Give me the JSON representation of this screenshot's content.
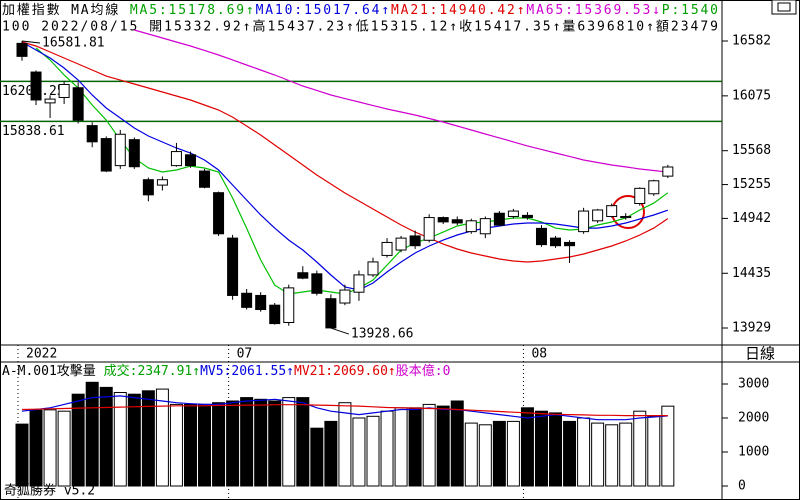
{
  "chart_data": [
    {
      "type": "candlestick",
      "header": [
        {
          "text": "加權指數 MA均線 ",
          "color": "#000000"
        },
        {
          "text": "MA5:15178.69↑",
          "color": "#00a000"
        },
        {
          "text": "MA10:15017.64↑",
          "color": "#0000e0"
        },
        {
          "text": "MA21:14940.42↑",
          "color": "#e00000"
        },
        {
          "text": "MA65:15369.53↓",
          "color": "#d000d0"
        },
        {
          "text": "P:1540",
          "color": "#00a000"
        }
      ],
      "subheader": "100 2022/08/15 開15332.92↑高15437.23↑低15315.12↑收15417.35↑量6396810↑額23479",
      "period": "日線",
      "categories": [
        "2022",
        null,
        null,
        null,
        null,
        null,
        null,
        null,
        null,
        null,
        null,
        null,
        null,
        null,
        null,
        "07",
        null,
        null,
        null,
        null,
        null,
        null,
        null,
        null,
        null,
        null,
        null,
        null,
        null,
        null,
        null,
        null,
        null,
        null,
        null,
        null,
        "08",
        null,
        null,
        null,
        null,
        null,
        null,
        null,
        null,
        null,
        null
      ],
      "open": [
        16560,
        16295,
        16010,
        16060,
        16150,
        15800,
        15680,
        15430,
        15670,
        15300,
        15250,
        15430,
        15530,
        15380,
        15180,
        14760,
        14250,
        14230,
        14140,
        13980,
        14440,
        14430,
        14200,
        14160,
        14260,
        14420,
        14600,
        14650,
        14780,
        14740,
        14950,
        14930,
        14820,
        14800,
        14990,
        14960,
        14970,
        14850,
        14760,
        14720,
        14820,
        14920,
        14960,
        14950,
        15080,
        15170,
        15332.92
      ],
      "high": [
        16581.81,
        16310,
        16080,
        16210,
        16200,
        15830,
        15700,
        15760,
        15690,
        15320,
        15330,
        15640,
        15560,
        15400,
        15190,
        14790,
        14290,
        14260,
        14160,
        14330,
        14500,
        14460,
        14240,
        14330,
        14460,
        14580,
        14760,
        14780,
        14830,
        14980,
        14960,
        14960,
        14940,
        14960,
        15010,
        15030,
        15000,
        14880,
        14780,
        14740,
        15040,
        15030,
        15080,
        14990,
        15230,
        15300,
        15437.23
      ],
      "low": [
        16400,
        15990,
        15870,
        16000,
        15820,
        15600,
        15370,
        15400,
        15400,
        15100,
        15200,
        15420,
        15410,
        15220,
        14780,
        14190,
        14100,
        14080,
        13960,
        13950,
        14380,
        14230,
        13928.66,
        14140,
        14180,
        14400,
        14580,
        14630,
        14660,
        14720,
        14890,
        14880,
        14800,
        14760,
        14870,
        14940,
        14930,
        14680,
        14670,
        14530,
        14800,
        14900,
        14950,
        14930,
        15060,
        15150,
        15315.12
      ],
      "close": [
        16440,
        16037,
        16045,
        16180,
        15850,
        15650,
        15380,
        15720,
        15420,
        15160,
        15300,
        15560,
        15430,
        15230,
        14800,
        14230,
        14120,
        14100,
        13970,
        14300,
        14390,
        14250,
        13930,
        14280,
        14420,
        14540,
        14720,
        14760,
        14690,
        14950,
        14910,
        14900,
        14920,
        14940,
        14880,
        15010,
        14950,
        14700,
        14690,
        14690,
        15010,
        15020,
        15060,
        14960,
        15220,
        15290,
        15417.35
      ],
      "lines": [
        {
          "color": "#00c000",
          "values": [
            null,
            16517,
            16406,
            16268,
            16148,
            15990,
            15852,
            15667,
            15500,
            15408,
            15371,
            15390,
            15426,
            15408,
            15371,
            15131,
            14853,
            14558,
            14326,
            14243,
            14262,
            14280,
            14262,
            14243,
            14299,
            14373,
            14511,
            14650,
            14715,
            14761,
            14816,
            14872,
            14900,
            14909,
            14927,
            14946,
            14946,
            14909,
            14853,
            14835,
            14844,
            14881,
            14909,
            14946,
            15020,
            15084,
            15178.69
          ]
        },
        {
          "color": "#0000e0",
          "values": [
            16573,
            16499,
            16425,
            16332,
            16221,
            16083,
            15963,
            15870,
            15778,
            15704,
            15648,
            15593,
            15547,
            15482,
            15390,
            15251,
            15112,
            14974,
            14853,
            14742,
            14650,
            14539,
            14419,
            14308,
            14280,
            14345,
            14447,
            14539,
            14622,
            14687,
            14742,
            14789,
            14826,
            14853,
            14872,
            14890,
            14900,
            14900,
            14890,
            14872,
            14853,
            14853,
            14872,
            14900,
            14937,
            14974,
            15017.64
          ]
        },
        {
          "color": "#e00000",
          "values": [
            16573,
            16536,
            16480,
            16425,
            16369,
            16314,
            16258,
            16221,
            16185,
            16148,
            16111,
            16074,
            16037,
            15990,
            15944,
            15879,
            15796,
            15713,
            15621,
            15528,
            15436,
            15343,
            15260,
            15177,
            15103,
            15029,
            14955,
            14881,
            14816,
            14761,
            14705,
            14659,
            14622,
            14595,
            14567,
            14548,
            14539,
            14548,
            14567,
            14585,
            14613,
            14650,
            14687,
            14733,
            14789,
            14853,
            14940.42
          ]
        },
        {
          "color": "#d000d0",
          "values": [
            null,
            null,
            null,
            null,
            null,
            null,
            null,
            null,
            16684,
            16647,
            16610,
            16573,
            16536,
            16495,
            16453,
            16407,
            16360,
            16314,
            16268,
            16217,
            16166,
            16125,
            16083,
            16050,
            16018,
            15985,
            15953,
            15926,
            15898,
            15866,
            15833,
            15796,
            15759,
            15722,
            15686,
            15649,
            15612,
            15580,
            15547,
            15515,
            15482,
            15459,
            15436,
            15418,
            15399,
            15385,
            15369.53
          ]
        }
      ],
      "hlines": [
        16209.25,
        15838.61
      ],
      "hline_color": "#006400",
      "annotations": [
        16581.81,
        13928.66
      ],
      "ylim": [
        13772,
        16961
      ],
      "yticks": [
        16582,
        16075,
        15568,
        15255,
        14942,
        14435,
        13929
      ]
    },
    {
      "type": "volume",
      "header": [
        {
          "text": "A-M.001攻擊量 ",
          "color": "#000000"
        },
        {
          "text": "成交:2347.91↑",
          "color": "#00a000"
        },
        {
          "text": "MV5:2061.55↑",
          "color": "#0000e0"
        },
        {
          "text": "MV21:2069.60↑",
          "color": "#e00000"
        },
        {
          "text": "股本億:0",
          "color": "#d000d0"
        }
      ],
      "footer": "奇狐勝券 v5.2",
      "values": [
        1820,
        2230,
        2240,
        2200,
        2700,
        3050,
        2900,
        2750,
        2700,
        2800,
        2850,
        2400,
        2400,
        2400,
        2450,
        2500,
        2600,
        2550,
        2500,
        2600,
        2600,
        1700,
        1900,
        2450,
        2000,
        2050,
        2200,
        2300,
        2300,
        2400,
        2350,
        2500,
        1850,
        1800,
        1900,
        1900,
        2300,
        2200,
        2150,
        1900,
        2000,
        1850,
        1800,
        1850,
        2200,
        2050,
        2347.91
      ],
      "lines": [
        {
          "color": "#0000e0",
          "values": [
            2200,
            2250,
            2300,
            2400,
            2500,
            2600,
            2620,
            2650,
            2600,
            2550,
            2500,
            2450,
            2420,
            2400,
            2400,
            2450,
            2500,
            2520,
            2550,
            2500,
            2450,
            2300,
            2200,
            2150,
            2100,
            2150,
            2200,
            2250,
            2250,
            2300,
            2250,
            2250,
            2200,
            2150,
            2100,
            2050,
            2000,
            2050,
            2100,
            2050,
            2000,
            1950,
            1950,
            1950,
            2000,
            2030,
            2061.55
          ]
        },
        {
          "color": "#e00000",
          "values": [
            2250,
            2260,
            2270,
            2280,
            2290,
            2300,
            2310,
            2320,
            2330,
            2340,
            2350,
            2360,
            2360,
            2360,
            2370,
            2370,
            2380,
            2380,
            2390,
            2390,
            2390,
            2380,
            2370,
            2360,
            2350,
            2330,
            2310,
            2300,
            2290,
            2280,
            2270,
            2250,
            2230,
            2210,
            2190,
            2170,
            2150,
            2130,
            2110,
            2100,
            2090,
            2080,
            2080,
            2070,
            2070,
            2070,
            2069.6
          ]
        }
      ],
      "ylim": [
        0,
        3647
      ],
      "yticks": [
        3000,
        2000,
        1000,
        0
      ]
    }
  ]
}
